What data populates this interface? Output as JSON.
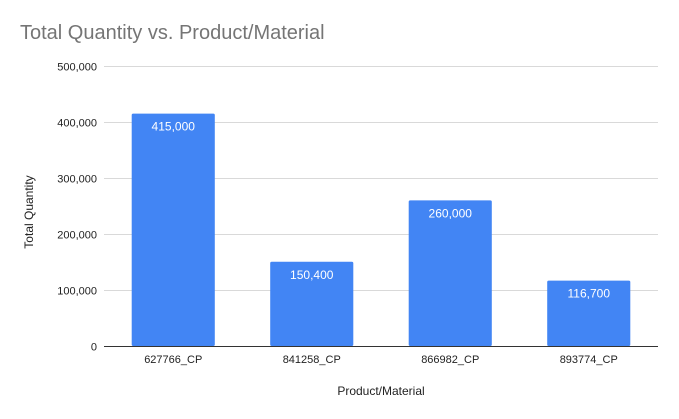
{
  "chart_data": {
    "type": "bar",
    "title": "Total Quantity vs. Product/Material",
    "xlabel": "Product/Material",
    "ylabel": "Total Quantity",
    "categories": [
      "627766_CP",
      "841258_CP",
      "866982_CP",
      "893774_CP"
    ],
    "values": [
      415000,
      150400,
      260000,
      116700
    ],
    "data_labels": [
      "415,000",
      "150,400",
      "260,000",
      "116,700"
    ],
    "ylim": [
      0,
      500000
    ],
    "yticks": [
      0,
      100000,
      200000,
      300000,
      400000,
      500000
    ],
    "ytick_labels": [
      "0",
      "100,000",
      "200,000",
      "300,000",
      "400,000",
      "500,000"
    ],
    "grid": true,
    "legend": "none",
    "bar_color": "#4285f4"
  }
}
